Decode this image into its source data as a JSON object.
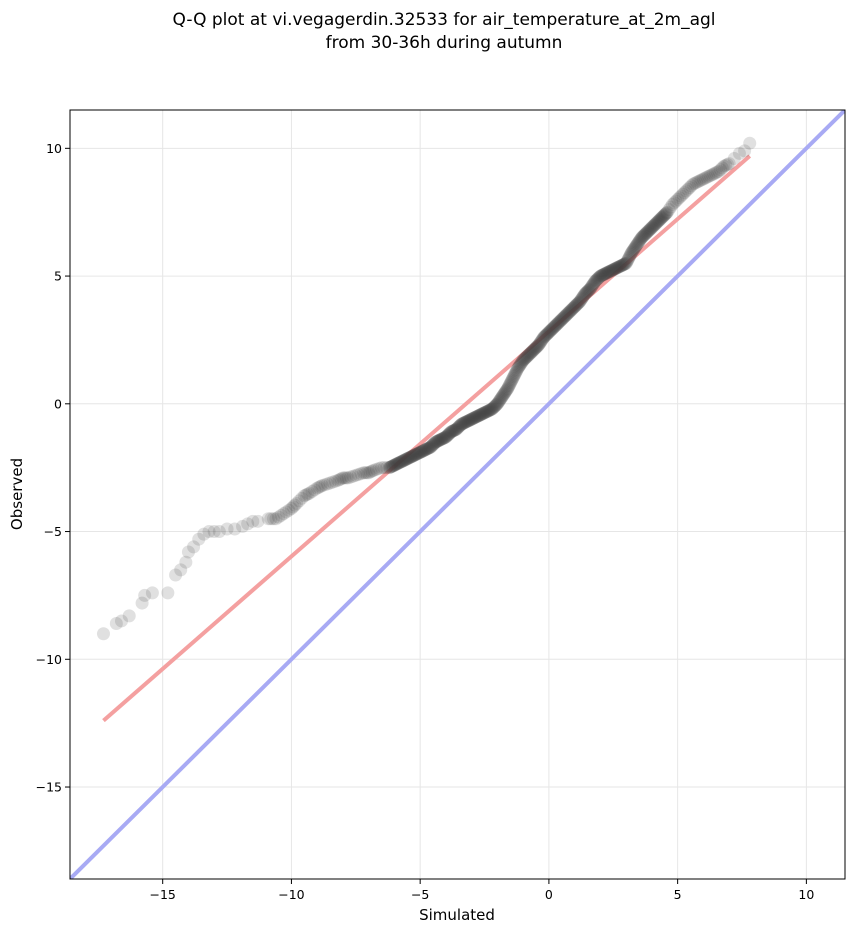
{
  "chart_data": {
    "type": "scatter",
    "title_lines": [
      "Q-Q plot at vi.vegagerdin.32533 for air_temperature_at_2m_agl",
      "from 30-36h during autumn"
    ],
    "xlabel": "Simulated",
    "ylabel": "Observed",
    "xlim": [
      -18.6,
      11.5
    ],
    "ylim": [
      -18.6,
      11.5
    ],
    "xticks": [
      -15,
      -10,
      -5,
      0,
      5,
      10
    ],
    "yticks": [
      -15,
      -10,
      -5,
      0,
      5,
      10
    ],
    "xtick_labels": [
      "−15",
      "−10",
      "−5",
      "0",
      "5",
      "10"
    ],
    "ytick_labels": [
      "−15",
      "−10",
      "−5",
      "0",
      "5",
      "10"
    ],
    "grid": true,
    "colors": {
      "points": "#404040",
      "fit_line": "#f4a0a0",
      "identity_line": "#a8aaf4",
      "grid": "#e6e6e6"
    },
    "fit_line": {
      "x": [
        -17.3,
        7.8
      ],
      "y": [
        -12.4,
        9.7
      ]
    },
    "identity_line": {
      "x": [
        -18.6,
        11.5
      ],
      "y": [
        -18.6,
        11.5
      ]
    },
    "quantiles": {
      "x": [
        -17.3,
        -16.8,
        -16.6,
        -16.3,
        -15.8,
        -15.7,
        -15.4,
        -14.8,
        -14.5,
        -14.3,
        -14.1,
        -14.0,
        -13.8,
        -13.6,
        -13.4,
        -13.2,
        -13.0,
        -12.8,
        -12.5,
        -12.2,
        -11.9,
        -11.7,
        -11.5,
        -11.3,
        -10.9,
        -10.6,
        -10.3,
        -10.0,
        -9.8,
        -9.5,
        -9.3,
        -9.0,
        -8.8,
        -8.5,
        -8.2,
        -8.0,
        -7.8,
        -7.5,
        -7.2,
        -7.0,
        -6.8,
        -6.5,
        -6.2,
        -6.0,
        -5.8,
        -5.6,
        -5.4,
        -5.2,
        -5.0,
        -4.8,
        -4.6,
        -4.4,
        -4.2,
        -4.0,
        -3.8,
        -3.6,
        -3.4,
        -3.2,
        -3.0,
        -2.8,
        -2.6,
        -2.4,
        -2.2,
        -2.0,
        -1.8,
        -1.6,
        -1.4,
        -1.2,
        -1.0,
        -0.8,
        -0.6,
        -0.4,
        -0.2,
        0.0,
        0.2,
        0.4,
        0.6,
        0.8,
        1.0,
        1.2,
        1.4,
        1.6,
        1.8,
        2.0,
        2.2,
        2.4,
        2.6,
        2.8,
        3.0,
        3.2,
        3.4,
        3.6,
        3.8,
        4.0,
        4.2,
        4.4,
        4.6,
        4.8,
        5.0,
        5.2,
        5.4,
        5.6,
        5.8,
        6.0,
        6.2,
        6.4,
        6.6,
        6.8,
        7.0,
        7.2,
        7.4,
        7.6,
        7.8
      ],
      "y": [
        -9.0,
        -8.6,
        -8.5,
        -8.3,
        -7.8,
        -7.5,
        -7.4,
        -7.4,
        -6.7,
        -6.5,
        -6.2,
        -5.8,
        -5.6,
        -5.3,
        -5.1,
        -5.0,
        -5.0,
        -5.0,
        -4.9,
        -4.9,
        -4.8,
        -4.7,
        -4.6,
        -4.6,
        -4.5,
        -4.5,
        -4.3,
        -4.1,
        -3.9,
        -3.6,
        -3.5,
        -3.3,
        -3.2,
        -3.1,
        -3.0,
        -2.9,
        -2.9,
        -2.8,
        -2.7,
        -2.7,
        -2.6,
        -2.5,
        -2.5,
        -2.4,
        -2.3,
        -2.2,
        -2.1,
        -2.0,
        -1.9,
        -1.8,
        -1.7,
        -1.5,
        -1.4,
        -1.3,
        -1.1,
        -1.0,
        -0.8,
        -0.7,
        -0.6,
        -0.5,
        -0.4,
        -0.3,
        -0.2,
        0.0,
        0.3,
        0.6,
        1.0,
        1.4,
        1.7,
        1.9,
        2.1,
        2.3,
        2.6,
        2.8,
        3.0,
        3.2,
        3.4,
        3.6,
        3.8,
        4.0,
        4.3,
        4.5,
        4.8,
        5.0,
        5.1,
        5.2,
        5.3,
        5.4,
        5.5,
        5.9,
        6.2,
        6.5,
        6.7,
        6.9,
        7.1,
        7.3,
        7.5,
        7.8,
        8.0,
        8.2,
        8.4,
        8.6,
        8.7,
        8.8,
        8.9,
        9.0,
        9.1,
        9.3,
        9.4,
        9.6,
        9.8,
        9.9,
        10.2
      ]
    }
  }
}
